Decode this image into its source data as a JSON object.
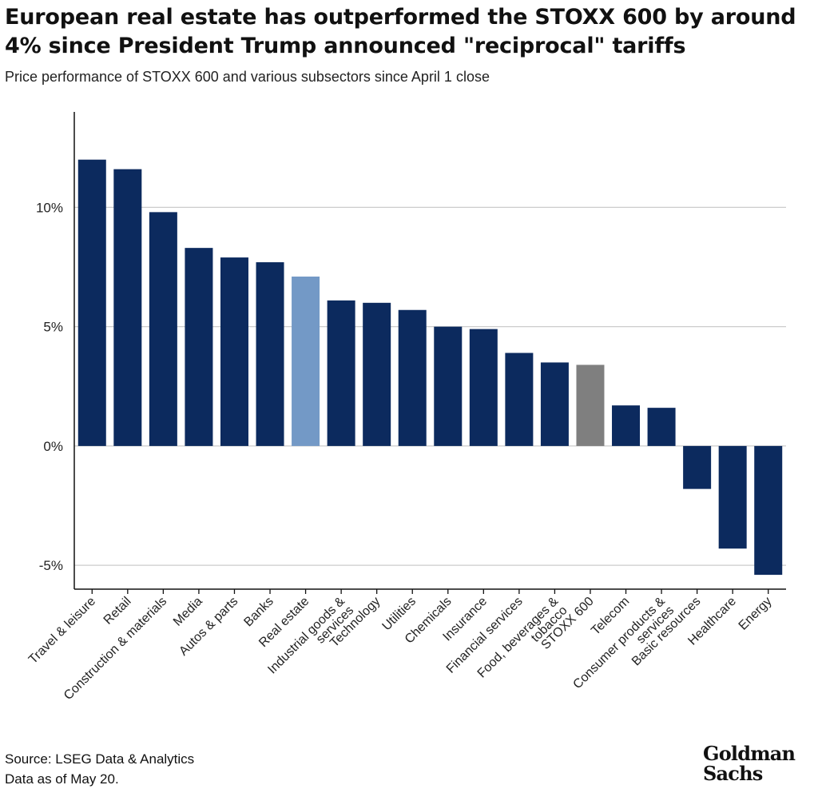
{
  "title": "European real estate has outperformed the STOXX 600 by around 4% since President Trump announced \"reciprocal\" tariffs",
  "subtitle": "Price performance of STOXX 600 and various subsectors since April 1 close",
  "source": {
    "line1": "Source: LSEG Data & Analytics",
    "line2": "Data as of May 20."
  },
  "logo": {
    "line1": "Goldman",
    "line2": "Sachs"
  },
  "colors": {
    "bar_default": "#0c2a5e",
    "bar_highlight": "#7399c6",
    "bar_index": "#7f7f7f",
    "grid": "#cccccc",
    "axis": "#111111"
  },
  "chart_data": {
    "type": "bar",
    "title": "European real estate has outperformed the STOXX 600 by around 4% since President Trump announced \"reciprocal\" tariffs",
    "subtitle": "Price performance of STOXX 600 and various subsectors since April 1 close",
    "xlabel": "",
    "ylabel": "",
    "ylim": [
      -6,
      14
    ],
    "yticks": [
      -5,
      0,
      5,
      10
    ],
    "ytick_labels": [
      "-5%",
      "0%",
      "5%",
      "10%"
    ],
    "grid": true,
    "categories": [
      "Travel & leisure",
      "Retail",
      "Construction & materials",
      "Media",
      "Autos & parts",
      "Banks",
      "Real estate",
      "Industrial goods & services",
      "Technology",
      "Utilities",
      "Chemicals",
      "Insurance",
      "Financial services",
      "Food, beverages & tobacco",
      "STOXX 600",
      "Telecom",
      "Consumer products & services",
      "Basic resources",
      "Healthcare",
      "Energy"
    ],
    "label_lines": [
      [
        "Travel & leisure"
      ],
      [
        "Retail"
      ],
      [
        "Construction & materials"
      ],
      [
        "Media"
      ],
      [
        "Autos & parts"
      ],
      [
        "Banks"
      ],
      [
        "Real estate"
      ],
      [
        "Industrial goods &",
        "services"
      ],
      [
        "Technology"
      ],
      [
        "Utilities"
      ],
      [
        "Chemicals"
      ],
      [
        "Insurance"
      ],
      [
        "Financial services"
      ],
      [
        "Food, beverages &",
        "tobacco"
      ],
      [
        "STOXX 600"
      ],
      [
        "Telecom"
      ],
      [
        "Consumer products &",
        "services"
      ],
      [
        "Basic resources"
      ],
      [
        "Healthcare"
      ],
      [
        "Energy"
      ]
    ],
    "values": [
      12.0,
      11.6,
      9.8,
      8.3,
      7.9,
      7.7,
      7.1,
      6.1,
      6.0,
      5.7,
      5.0,
      4.9,
      3.9,
      3.5,
      3.4,
      1.7,
      1.6,
      -1.8,
      -4.3,
      -5.4
    ],
    "highlight": [
      "Real estate"
    ],
    "index": [
      "STOXX 600"
    ]
  }
}
